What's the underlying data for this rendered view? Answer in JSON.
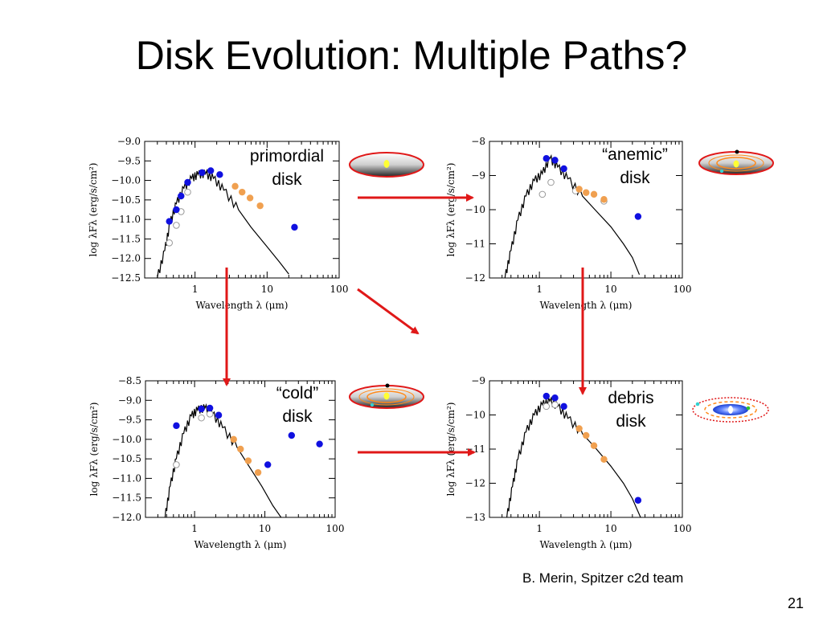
{
  "title": "Disk Evolution: Multiple Paths?",
  "credit": "B. Merin, Spitzer c2d team",
  "page_number": "21",
  "colors": {
    "nir_point": "#1010e0",
    "mir_point": "#f0a050",
    "arrow": "#e01818",
    "open_point": "#999999"
  },
  "panel_labels": {
    "primordial": [
      "primordial",
      "disk"
    ],
    "anemic": [
      "“anemic”",
      "disk"
    ],
    "cold": [
      "“cold”",
      "disk"
    ],
    "debris": [
      "debris",
      "disk"
    ]
  },
  "chart_data": [
    {
      "type": "scatter",
      "name": "primordial",
      "xlabel": "Wavelength λ (μm)",
      "ylabel": "log λFλ (erg/s/cm²)",
      "xscale": "log",
      "xlim": [
        0.2,
        100
      ],
      "ylim": [
        -12.5,
        -9.0
      ],
      "xticks": [
        1,
        10,
        100
      ],
      "xtick_labels": [
        "1",
        "10",
        "100"
      ],
      "yticks": [
        -9.0,
        -9.5,
        -10.0,
        -10.5,
        -11.0,
        -11.5,
        -12.0,
        -12.5
      ],
      "ytick_labels": [
        "−9.0",
        "−9.5",
        "−10.0",
        "−10.5",
        "−11.0",
        "−11.5",
        "−12.0",
        "−12.5"
      ],
      "photosphere": [
        [
          0.3,
          -12.5
        ],
        [
          0.38,
          -11.8
        ],
        [
          0.45,
          -11.1
        ],
        [
          0.55,
          -10.6
        ],
        [
          0.7,
          -10.2
        ],
        [
          0.9,
          -9.95
        ],
        [
          1.1,
          -9.85
        ],
        [
          1.4,
          -9.83
        ],
        [
          1.8,
          -9.95
        ],
        [
          2.5,
          -10.25
        ],
        [
          4,
          -10.75
        ],
        [
          6,
          -11.2
        ],
        [
          10,
          -11.7
        ],
        [
          15,
          -12.1
        ],
        [
          20,
          -12.4
        ]
      ],
      "nir_points": [
        [
          0.44,
          -11.05
        ],
        [
          0.55,
          -10.75
        ],
        [
          0.64,
          -10.4
        ],
        [
          0.79,
          -10.05
        ],
        [
          1.25,
          -9.8
        ],
        [
          1.65,
          -9.75
        ],
        [
          2.2,
          -9.85
        ],
        [
          24,
          -11.2
        ]
      ],
      "mir_points": [
        [
          3.6,
          -10.15
        ],
        [
          4.5,
          -10.3
        ],
        [
          5.8,
          -10.45
        ],
        [
          8.0,
          -10.65
        ]
      ],
      "open_points": [
        [
          0.44,
          -11.6
        ],
        [
          0.55,
          -11.15
        ],
        [
          0.64,
          -10.8
        ],
        [
          0.79,
          -10.3
        ]
      ]
    },
    {
      "type": "scatter",
      "name": "anemic",
      "xlabel": "Wavelength λ (μm)",
      "ylabel": "log λFλ (erg/s/cm²)",
      "xscale": "log",
      "xlim": [
        0.2,
        100
      ],
      "ylim": [
        -12,
        -8
      ],
      "xticks": [
        1,
        10,
        100
      ],
      "xtick_labels": [
        "1",
        "10",
        "100"
      ],
      "yticks": [
        -8,
        -9,
        -10,
        -11,
        -12
      ],
      "ytick_labels": [
        "−8",
        "−9",
        "−10",
        "−11",
        "−12"
      ],
      "photosphere": [
        [
          0.33,
          -12
        ],
        [
          0.4,
          -11.2
        ],
        [
          0.5,
          -10.3
        ],
        [
          0.65,
          -9.6
        ],
        [
          0.85,
          -9.15
        ],
        [
          1.1,
          -8.95
        ],
        [
          1.4,
          -8.5
        ],
        [
          1.8,
          -8.75
        ],
        [
          2.5,
          -9.1
        ],
        [
          4,
          -9.6
        ],
        [
          6,
          -10.0
        ],
        [
          10,
          -10.5
        ],
        [
          15,
          -11.0
        ],
        [
          20,
          -11.4
        ],
        [
          25,
          -11.9
        ]
      ],
      "nir_points": [
        [
          1.25,
          -8.5
        ],
        [
          1.65,
          -8.55
        ],
        [
          2.2,
          -8.8
        ],
        [
          24,
          -10.2
        ]
      ],
      "mir_points": [
        [
          3.6,
          -9.4
        ],
        [
          4.5,
          -9.5
        ],
        [
          5.8,
          -9.55
        ],
        [
          8.0,
          -9.7
        ]
      ],
      "open_points": [
        [
          1.1,
          -9.55
        ],
        [
          1.45,
          -9.2
        ],
        [
          3.2,
          -9.45
        ],
        [
          8.0,
          -9.75
        ]
      ]
    },
    {
      "type": "scatter",
      "name": "cold",
      "xlabel": "Wavelength λ (μm)",
      "ylabel": "log λFλ (erg/s/cm²)",
      "xscale": "log",
      "xlim": [
        0.2,
        100
      ],
      "ylim": [
        -12.0,
        -8.5
      ],
      "xticks": [
        1,
        10,
        100
      ],
      "xtick_labels": [
        "1",
        "10",
        "100"
      ],
      "yticks": [
        -8.5,
        -9.0,
        -9.5,
        -10.0,
        -10.5,
        -11.0,
        -11.5,
        -12.0
      ],
      "ytick_labels": [
        "−8.5",
        "−9.0",
        "−9.5",
        "−10.0",
        "−10.5",
        "−11.0",
        "−11.5",
        "−12.0"
      ],
      "photosphere": [
        [
          0.38,
          -12
        ],
        [
          0.45,
          -11.2
        ],
        [
          0.55,
          -10.5
        ],
        [
          0.7,
          -9.85
        ],
        [
          0.9,
          -9.4
        ],
        [
          1.1,
          -9.25
        ],
        [
          1.4,
          -9.2
        ],
        [
          1.8,
          -9.35
        ],
        [
          2.5,
          -9.7
        ],
        [
          4,
          -10.2
        ],
        [
          6,
          -10.7
        ],
        [
          9,
          -11.2
        ],
        [
          13,
          -11.7
        ],
        [
          17,
          -12.0
        ]
      ],
      "nir_points": [
        [
          0.55,
          -9.65
        ],
        [
          1.25,
          -9.22
        ],
        [
          1.65,
          -9.2
        ],
        [
          2.2,
          -9.38
        ],
        [
          11,
          -10.65
        ],
        [
          24,
          -9.9
        ],
        [
          60,
          -10.12
        ]
      ],
      "mir_points": [
        [
          3.6,
          -10.0
        ],
        [
          4.5,
          -10.25
        ],
        [
          5.8,
          -10.55
        ],
        [
          8.0,
          -10.85
        ]
      ],
      "open_points": [
        [
          0.55,
          -10.65
        ],
        [
          1.25,
          -9.45
        ],
        [
          1.65,
          -9.35
        ]
      ]
    },
    {
      "type": "scatter",
      "name": "debris",
      "xlabel": "Wavelength λ (μm)",
      "ylabel": "log λFλ (erg/s/cm²)",
      "xscale": "log",
      "xlim": [
        0.2,
        100
      ],
      "ylim": [
        -13,
        -9
      ],
      "xticks": [
        1,
        10,
        100
      ],
      "xtick_labels": [
        "1",
        "10",
        "100"
      ],
      "yticks": [
        -9,
        -10,
        -11,
        -12,
        -13
      ],
      "ytick_labels": [
        "−9",
        "−10",
        "−11",
        "−12",
        "−13"
      ],
      "photosphere": [
        [
          0.35,
          -13
        ],
        [
          0.42,
          -12.1
        ],
        [
          0.5,
          -11.3
        ],
        [
          0.65,
          -10.5
        ],
        [
          0.85,
          -10.0
        ],
        [
          1.1,
          -9.7
        ],
        [
          1.4,
          -9.6
        ],
        [
          1.8,
          -9.75
        ],
        [
          2.5,
          -10.1
        ],
        [
          4,
          -10.55
        ],
        [
          6,
          -10.95
        ],
        [
          10,
          -11.5
        ],
        [
          15,
          -12.0
        ],
        [
          20,
          -12.45
        ],
        [
          26,
          -13.0
        ]
      ],
      "nir_points": [
        [
          1.25,
          -9.45
        ],
        [
          1.65,
          -9.5
        ],
        [
          2.2,
          -9.75
        ],
        [
          24,
          -12.5
        ]
      ],
      "mir_points": [
        [
          3.6,
          -10.4
        ],
        [
          4.5,
          -10.6
        ],
        [
          5.8,
          -10.9
        ],
        [
          8.0,
          -11.3
        ]
      ],
      "open_points": [
        [
          1.25,
          -9.75
        ],
        [
          1.65,
          -9.7
        ]
      ]
    }
  ]
}
